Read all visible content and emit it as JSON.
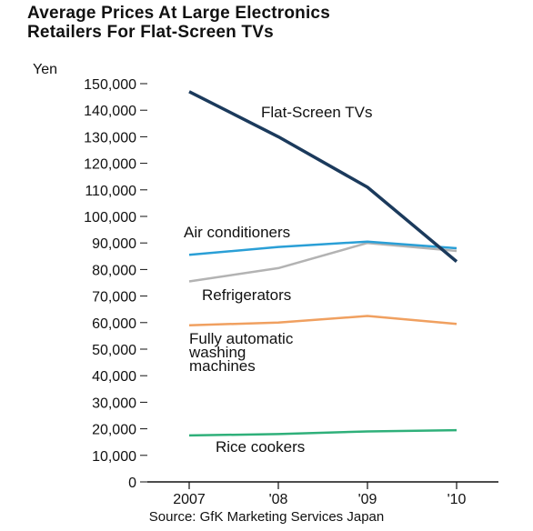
{
  "chart_data": {
    "type": "line",
    "title_lines": [
      "Average Prices At Large Electronics",
      "Retailers For Flat-Screen TVs"
    ],
    "ylabel": "Yen",
    "categories": [
      "2007",
      "'08",
      "'09",
      "'10"
    ],
    "ylim": [
      0,
      150000
    ],
    "y_ticks": [
      0,
      10000,
      20000,
      30000,
      40000,
      50000,
      60000,
      70000,
      80000,
      90000,
      100000,
      110000,
      120000,
      130000,
      140000,
      150000
    ],
    "y_tick_labels": [
      "0",
      "10,000",
      "20,000",
      "30,000",
      "40,000",
      "50,000",
      "60,000",
      "70,000",
      "80,000",
      "90,000",
      "100,000",
      "110,000",
      "120,000",
      "130,000",
      "140,000",
      "150,000"
    ],
    "grid": false,
    "legend": "inline labels",
    "series": [
      {
        "name": "Flat-Screen TVs",
        "values": [
          147000,
          130000,
          111000,
          83000
        ],
        "color": "#1b3a5c"
      },
      {
        "name": "Air conditioners",
        "values": [
          85500,
          88500,
          90500,
          88000
        ],
        "color": "#2a9fd6"
      },
      {
        "name": "Refrigerators",
        "values": [
          75500,
          80500,
          90000,
          87000
        ],
        "color": "#b3b3b3"
      },
      {
        "name_lines": [
          "Fully automatic",
          "washing",
          "machines"
        ],
        "values": [
          59000,
          60000,
          62500,
          59500
        ],
        "color": "#f0a060"
      },
      {
        "name": "Rice cookers",
        "values": [
          17500,
          18000,
          19000,
          19500
        ],
        "color": "#2fb07a"
      }
    ],
    "source": "Source: GfK Marketing Services Japan"
  }
}
